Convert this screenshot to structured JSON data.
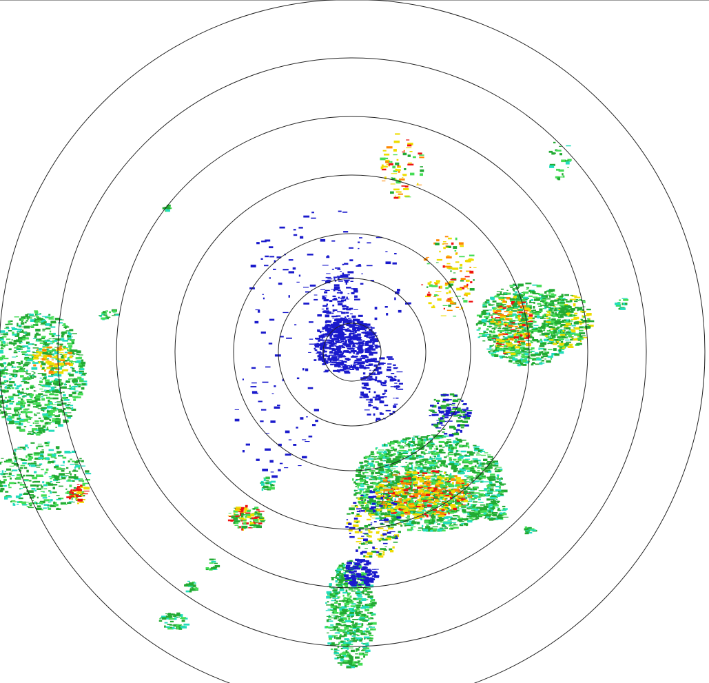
{
  "radar": {
    "range_ring_count": 7,
    "colors": {
      "ring": "#222222",
      "weak_echo": "#1a1acc",
      "light_rain": "#22aa33",
      "light_green": "#44dd55",
      "cyan": "#22ddbb",
      "moderate": "#eedd00",
      "heavy": "#ff8800",
      "very_heavy": "#ee1111"
    }
  }
}
